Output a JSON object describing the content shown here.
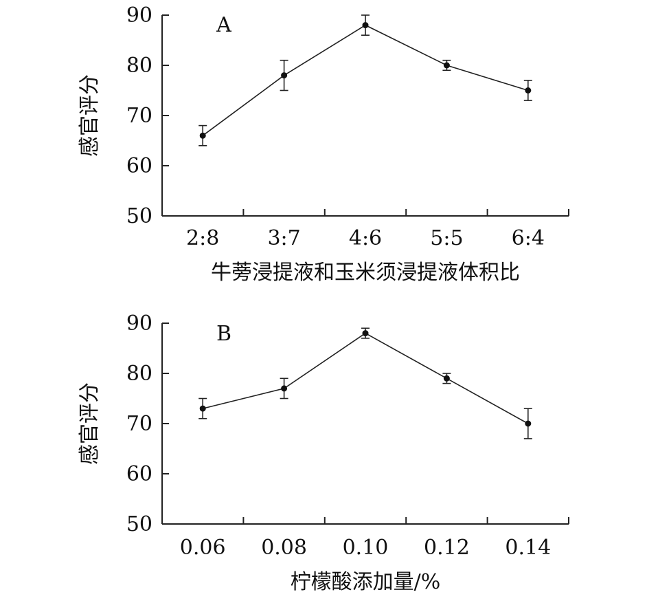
{
  "chart_data": [
    {
      "type": "line",
      "panel_label": "A",
      "xlabel": "牛蒡浸提液和玉米须浸提液体积比",
      "ylabel": "感官评分",
      "categories": [
        "2:8",
        "3:7",
        "4:6",
        "5:5",
        "6:4"
      ],
      "series": [
        {
          "values": [
            66,
            78,
            88,
            80,
            75
          ],
          "errors": [
            2,
            3,
            2,
            1,
            2
          ]
        }
      ],
      "ylim": [
        50,
        90
      ],
      "yticks": [
        "50",
        "60",
        "70",
        "80",
        "90"
      ],
      "grid": false,
      "legend": "none"
    },
    {
      "type": "line",
      "panel_label": "B",
      "xlabel": "柠檬酸添加量/%",
      "ylabel": "感官评分",
      "categories": [
        "0.06",
        "0.08",
        "0.10",
        "0.12",
        "0.14"
      ],
      "series": [
        {
          "values": [
            73,
            77,
            88,
            79,
            70
          ],
          "errors": [
            2,
            2,
            1,
            1,
            3
          ]
        }
      ],
      "ylim": [
        50,
        90
      ],
      "yticks": [
        "50",
        "60",
        "70",
        "80",
        "90"
      ],
      "grid": false,
      "legend": "none"
    }
  ]
}
